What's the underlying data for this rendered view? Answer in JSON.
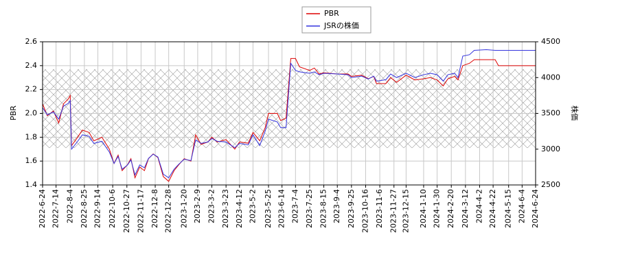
{
  "chart_data": {
    "type": "line",
    "ylabel": "PBR",
    "y2label": "株価",
    "x": [
      "2022-6-24",
      "2022-7-1",
      "2022-7-10",
      "2022-7-18",
      "2022-7-25",
      "2022-8-1",
      "2022-8-4",
      "2022-8-6",
      "2022-8-15",
      "2022-8-22",
      "2022-9-1",
      "2022-9-8",
      "2022-9-20",
      "2022-10-1",
      "2022-10-8",
      "2022-10-14",
      "2022-10-20",
      "2022-10-28",
      "2022-11-2",
      "2022-11-8",
      "2022-11-15",
      "2022-11-22",
      "2022-11-28",
      "2022-12-5",
      "2022-12-12",
      "2022-12-20",
      "2022-12-28",
      "2023-1-5",
      "2023-1-12",
      "2023-1-20",
      "2023-1-30",
      "2023-2-6",
      "2023-2-14",
      "2023-2-24",
      "2023-3-2",
      "2023-3-10",
      "2023-3-23",
      "2023-4-5",
      "2023-4-12",
      "2023-4-25",
      "2023-5-2",
      "2023-5-12",
      "2023-5-20",
      "2023-5-25",
      "2023-6-7",
      "2023-6-12",
      "2023-6-20",
      "2023-6-27",
      "2023-7-4",
      "2023-7-10",
      "2023-7-25",
      "2023-8-1",
      "2023-8-8",
      "2023-8-15",
      "2023-9-4",
      "2023-9-20",
      "2023-9-25",
      "2023-10-10",
      "2023-10-20",
      "2023-10-28",
      "2023-11-1",
      "2023-11-15",
      "2023-11-22",
      "2023-12-1",
      "2023-12-15",
      "2023-12-28",
      "2024-1-10",
      "2024-1-20",
      "2024-1-30",
      "2024-2-8",
      "2024-2-15",
      "2024-2-25",
      "2024-3-1",
      "2024-3-8",
      "2024-3-18",
      "2024-3-25",
      "2024-4-12",
      "2024-4-25",
      "2024-4-30",
      "2024-6-24"
    ],
    "series": [
      {
        "name": "PBR",
        "color": "#dd0000",
        "axis": "y",
        "values": [
          2.08,
          1.98,
          2.02,
          1.92,
          2.08,
          2.12,
          2.15,
          1.73,
          1.8,
          1.86,
          1.84,
          1.77,
          1.8,
          1.7,
          1.58,
          1.65,
          1.52,
          1.57,
          1.62,
          1.46,
          1.55,
          1.52,
          1.62,
          1.66,
          1.63,
          1.47,
          1.43,
          1.52,
          1.57,
          1.62,
          1.6,
          1.82,
          1.74,
          1.76,
          1.8,
          1.76,
          1.78,
          1.7,
          1.76,
          1.75,
          1.84,
          1.77,
          1.88,
          2.0,
          2.0,
          1.94,
          1.96,
          2.46,
          2.46,
          2.39,
          2.36,
          2.38,
          2.33,
          2.34,
          2.33,
          2.33,
          2.31,
          2.32,
          2.29,
          2.31,
          2.25,
          2.25,
          2.3,
          2.26,
          2.32,
          2.28,
          2.29,
          2.3,
          2.28,
          2.23,
          2.29,
          2.31,
          2.28,
          2.4,
          2.42,
          2.45,
          2.45,
          2.45,
          2.4,
          2.4
        ]
      },
      {
        "name": "JSRの株価",
        "color": "#3333dd",
        "axis": "y2",
        "values": [
          3580,
          3480,
          3520,
          3420,
          3600,
          3640,
          3680,
          3000,
          3110,
          3200,
          3180,
          3080,
          3110,
          2960,
          2800,
          2900,
          2720,
          2780,
          2850,
          2640,
          2780,
          2740,
          2870,
          2930,
          2890,
          2650,
          2600,
          2720,
          2790,
          2860,
          2840,
          3130,
          3080,
          3100,
          3150,
          3110,
          3100,
          3020,
          3080,
          3060,
          3200,
          3050,
          3250,
          3420,
          3380,
          3300,
          3300,
          4200,
          4100,
          4080,
          4060,
          4080,
          4040,
          4060,
          4050,
          4040,
          4000,
          4020,
          3980,
          4020,
          3950,
          3970,
          4050,
          4000,
          4060,
          4000,
          4040,
          4060,
          4040,
          3950,
          4040,
          4060,
          4000,
          4300,
          4320,
          4380,
          4390,
          4380,
          4380,
          4380
        ]
      }
    ],
    "band": [
      1.71,
      2.37
    ],
    "xlim": [
      "2022-6-24",
      "2024-6-24"
    ],
    "xticks": [
      "2022-6-24",
      "2022-7-14",
      "2022-8-4",
      "2022-8-25",
      "2022-9-14",
      "2022-10-6",
      "2022-10-27",
      "2022-11-17",
      "2022-12-8",
      "2022-12-28",
      "2023-1-20",
      "2023-2-9",
      "2023-3-2",
      "2023-3-23",
      "2023-4-12",
      "2023-5-2",
      "2023-5-25",
      "2023-6-14",
      "2023-7-4",
      "2023-7-25",
      "2023-8-15",
      "2023-9-4",
      "2023-9-25",
      "2023-10-16",
      "2023-11-6",
      "2023-11-27",
      "2023-12-15",
      "2024-1-10",
      "2024-1-30",
      "2024-2-20",
      "2024-3-12",
      "2024-4-2",
      "2024-4-22",
      "2024-5-15",
      "2024-6-4",
      "2024-6-24"
    ],
    "ylim": [
      1.4,
      2.6
    ],
    "yticks": [
      1.4,
      1.6,
      1.8,
      {
        "value": 2,
        "label": "2.0"
      },
      2.2,
      2.4,
      2.6
    ],
    "y2lim": [
      2500,
      4500
    ],
    "y2ticks": [
      2500,
      3000,
      3500,
      4000,
      4500
    ],
    "grid": true,
    "legend": "top"
  }
}
